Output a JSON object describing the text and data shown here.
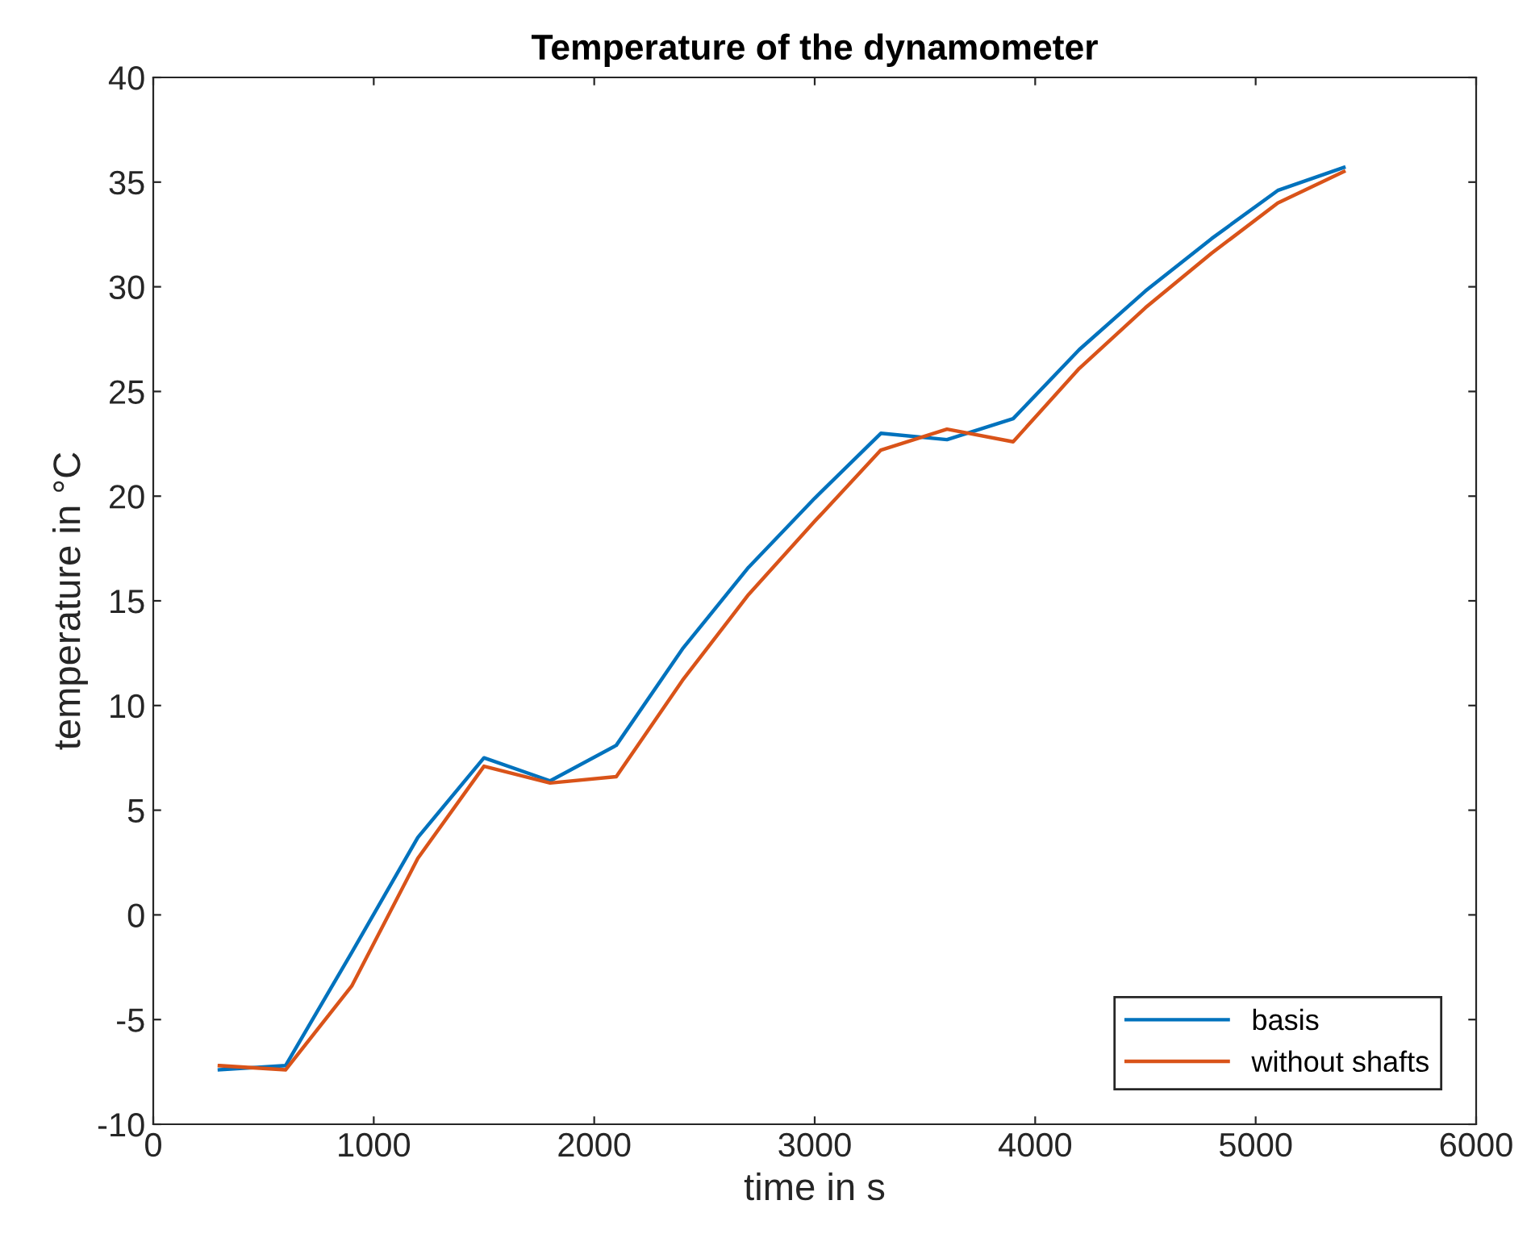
{
  "chart_data": {
    "type": "line",
    "title": "Temperature of the dynamometer",
    "xlabel": "time in s",
    "ylabel": "temperature in °C",
    "x": [
      300,
      600,
      900,
      1200,
      1500,
      1800,
      2100,
      2400,
      2700,
      3000,
      3300,
      3600,
      3900,
      4200,
      4500,
      4800,
      5100,
      5400
    ],
    "series": [
      {
        "name": "basis",
        "color": "#0072bd",
        "values": [
          -7.4,
          -7.2,
          -1.8,
          3.7,
          7.5,
          6.4,
          8.1,
          12.7,
          16.6,
          19.9,
          23.0,
          22.7,
          23.7,
          27.0,
          29.8,
          32.3,
          34.6,
          35.7
        ]
      },
      {
        "name": "without shafts",
        "color": "#d95319",
        "values": [
          -7.2,
          -7.4,
          -3.4,
          2.7,
          7.1,
          6.3,
          6.6,
          11.2,
          15.3,
          18.8,
          22.2,
          23.2,
          22.6,
          26.1,
          29.0,
          31.6,
          34.0,
          35.5
        ]
      }
    ],
    "xlim": [
      0,
      6000
    ],
    "xticks": [
      0,
      1000,
      2000,
      3000,
      4000,
      5000,
      6000
    ],
    "ylim": [
      -10,
      40
    ],
    "yticks": [
      -10,
      -5,
      0,
      5,
      10,
      15,
      20,
      25,
      30,
      35,
      40
    ],
    "grid": false,
    "legend": "bottom right",
    "marker": "none",
    "line_style": "solid"
  }
}
